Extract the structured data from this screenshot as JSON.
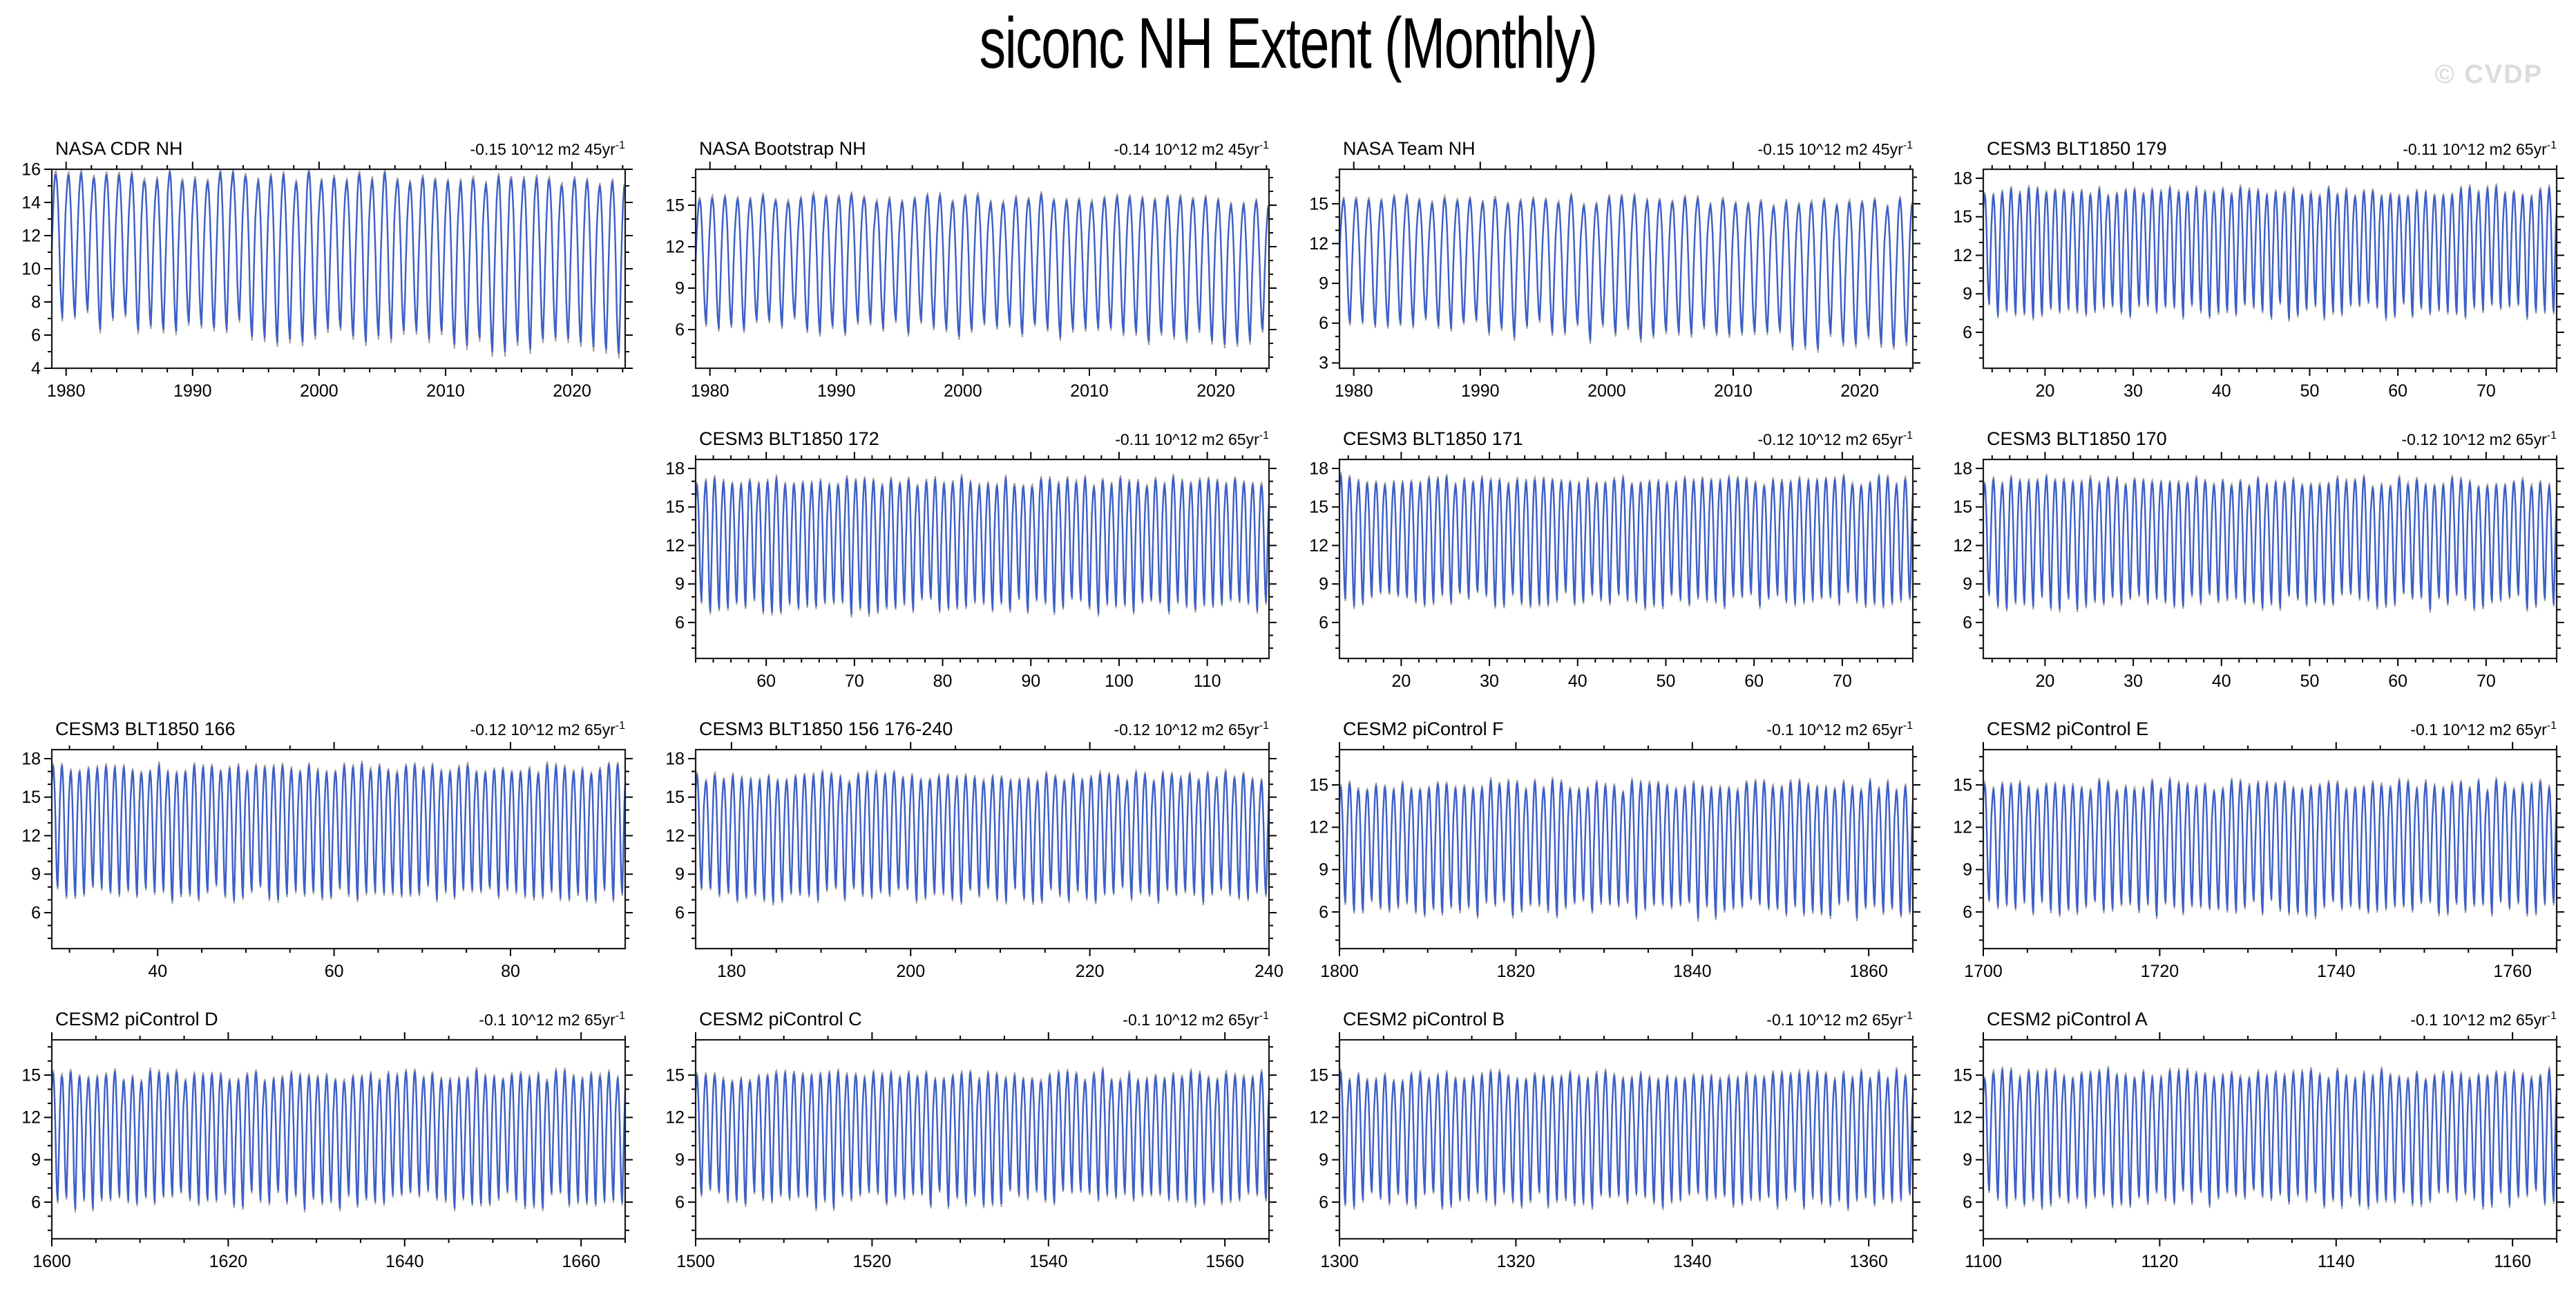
{
  "page": {
    "title": "siconc NH Extent (Monthly)",
    "watermark": "© CVDP"
  },
  "style": {
    "line_color": "#3d5fc9",
    "shadow_color": "#9e9e9e",
    "axis_color": "#000000",
    "box_color": "#1a1a1a",
    "watermark_color": "#dcdcdc",
    "background": "#ffffff"
  },
  "chart_data": [
    {
      "type": "line",
      "title": "NASA CDR NH",
      "trend": "-0.15 10^12 m2 45yr",
      "trend_sup": "-1",
      "row": 1,
      "col": 1,
      "x_start": 1978.87,
      "x_end": 2024.2,
      "x_major_ticks": [
        1980,
        1990,
        2000,
        2010,
        2020
      ],
      "x_minor_step": 2,
      "y_range": [
        4,
        16
      ],
      "y_major_ticks": [
        4,
        6,
        8,
        10,
        12,
        14,
        16
      ],
      "y_minor_step": 1,
      "seasonal_max": 15.75,
      "seasonal_min": 7.0,
      "max_drift": -0.55,
      "min_drift": -1.9,
      "seed": 101
    },
    {
      "type": "line",
      "title": "NASA Bootstrap NH",
      "trend": "-0.14 10^12 m2 45yr",
      "trend_sup": "-1",
      "row": 1,
      "col": 2,
      "x_start": 1978.87,
      "x_end": 2024.2,
      "x_major_ticks": [
        1980,
        1990,
        2000,
        2010,
        2020
      ],
      "x_minor_step": 2,
      "y_range": [
        3.2,
        17.6
      ],
      "y_major_ticks": [
        6,
        9,
        12,
        15
      ],
      "y_minor_step": 1,
      "seasonal_max": 15.6,
      "seasonal_min": 6.5,
      "max_drift": -0.4,
      "min_drift": -1.2,
      "seed": 202
    },
    {
      "type": "line",
      "title": "NASA Team NH",
      "trend": "-0.15 10^12 m2 45yr",
      "trend_sup": "-1",
      "row": 1,
      "col": 3,
      "x_start": 1978.87,
      "x_end": 2024.2,
      "x_major_ticks": [
        1980,
        1990,
        2000,
        2010,
        2020
      ],
      "x_minor_step": 2,
      "y_range": [
        2.6,
        17.6
      ],
      "y_major_ticks": [
        3,
        6,
        9,
        12,
        15
      ],
      "y_minor_step": 1,
      "seasonal_max": 15.4,
      "seasonal_min": 6.1,
      "max_drift": -0.5,
      "min_drift": -1.7,
      "seed": 303
    },
    {
      "type": "line",
      "title": "CESM3 BLT1850 179",
      "trend": "-0.11 10^12 m2 65yr",
      "trend_sup": "-1",
      "row": 1,
      "col": 4,
      "x_start": 13,
      "x_end": 78,
      "x_major_ticks": [
        20,
        30,
        40,
        50,
        60,
        70
      ],
      "x_minor_step": 2,
      "y_range": [
        3.2,
        18.7
      ],
      "y_major_ticks": [
        6,
        9,
        12,
        15,
        18
      ],
      "y_minor_step": 1,
      "seasonal_max": 16.9,
      "seasonal_min": 7.7,
      "max_drift": 0,
      "min_drift": 0,
      "seed": 404
    },
    {
      "type": "line",
      "title": "CESM3 BLT1850 172",
      "trend": "-0.11 10^12 m2 65yr",
      "trend_sup": "-1",
      "row": 2,
      "col": 2,
      "x_start": 52,
      "x_end": 117,
      "x_major_ticks": [
        60,
        70,
        80,
        90,
        100,
        110
      ],
      "x_minor_step": 2,
      "y_range": [
        3.2,
        18.7
      ],
      "y_major_ticks": [
        6,
        9,
        12,
        15,
        18
      ],
      "y_minor_step": 1,
      "seasonal_max": 16.9,
      "seasonal_min": 7.3,
      "max_drift": 0,
      "min_drift": 0,
      "seed": 505
    },
    {
      "type": "line",
      "title": "CESM3 BLT1850 171",
      "trend": "-0.12 10^12 m2 65yr",
      "trend_sup": "-1",
      "row": 2,
      "col": 3,
      "x_start": 13,
      "x_end": 78,
      "x_major_ticks": [
        20,
        30,
        40,
        50,
        60,
        70
      ],
      "x_minor_step": 2,
      "y_range": [
        3.2,
        18.7
      ],
      "y_major_ticks": [
        6,
        9,
        12,
        15,
        18
      ],
      "y_minor_step": 1,
      "seasonal_max": 17.0,
      "seasonal_min": 7.8,
      "max_drift": 0,
      "min_drift": 0,
      "seed": 606
    },
    {
      "type": "line",
      "title": "CESM3 BLT1850 170",
      "trend": "-0.12 10^12 m2 65yr",
      "trend_sup": "-1",
      "row": 2,
      "col": 4,
      "x_start": 13,
      "x_end": 78,
      "x_major_ticks": [
        20,
        30,
        40,
        50,
        60,
        70
      ],
      "x_minor_step": 2,
      "y_range": [
        3.2,
        18.7
      ],
      "y_major_ticks": [
        6,
        9,
        12,
        15,
        18
      ],
      "y_minor_step": 1,
      "seasonal_max": 16.9,
      "seasonal_min": 7.7,
      "max_drift": 0,
      "min_drift": 0,
      "seed": 707
    },
    {
      "type": "line",
      "title": "CESM3 BLT1850 166",
      "trend": "-0.12 10^12 m2 65yr",
      "trend_sup": "-1",
      "row": 3,
      "col": 1,
      "x_start": 28,
      "x_end": 93,
      "x_major_ticks": [
        40,
        60,
        80
      ],
      "x_minor_step": 5,
      "y_range": [
        3.2,
        18.7
      ],
      "y_major_ticks": [
        6,
        9,
        12,
        15,
        18
      ],
      "y_minor_step": 1,
      "seasonal_max": 17.2,
      "seasonal_min": 7.6,
      "max_drift": 0,
      "min_drift": 0,
      "seed": 808
    },
    {
      "type": "line",
      "title": "CESM3 BLT1850 156 176-240",
      "trend": "-0.12 10^12 m2 65yr",
      "trend_sup": "-1",
      "row": 3,
      "col": 2,
      "x_start": 176,
      "x_end": 240,
      "x_major_ticks": [
        180,
        200,
        220,
        240
      ],
      "x_minor_step": 5,
      "y_range": [
        3.2,
        18.7
      ],
      "y_major_ticks": [
        6,
        9,
        12,
        15,
        18
      ],
      "y_minor_step": 1,
      "seasonal_max": 16.5,
      "seasonal_min": 7.4,
      "max_drift": 0,
      "min_drift": 0,
      "seed": 909
    },
    {
      "type": "line",
      "title": "CESM2 piControl F",
      "trend": "-0.1 10^12 m2 65yr",
      "trend_sup": "-1",
      "row": 3,
      "col": 3,
      "x_start": 1800,
      "x_end": 1865,
      "x_major_ticks": [
        1800,
        1820,
        1840,
        1860
      ],
      "x_minor_step": 5,
      "y_range": [
        3.4,
        17.5
      ],
      "y_major_ticks": [
        6,
        9,
        12,
        15
      ],
      "y_minor_step": 1,
      "seasonal_max": 14.9,
      "seasonal_min": 6.3,
      "max_drift": 0,
      "min_drift": 0,
      "seed": 1010
    },
    {
      "type": "line",
      "title": "CESM2 piControl E",
      "trend": "-0.1 10^12 m2 65yr",
      "trend_sup": "-1",
      "row": 3,
      "col": 4,
      "x_start": 1700,
      "x_end": 1765,
      "x_major_ticks": [
        1700,
        1720,
        1740,
        1760
      ],
      "x_minor_step": 5,
      "y_range": [
        3.4,
        17.5
      ],
      "y_major_ticks": [
        6,
        9,
        12,
        15
      ],
      "y_minor_step": 1,
      "seasonal_max": 14.9,
      "seasonal_min": 6.3,
      "max_drift": 0,
      "min_drift": 0,
      "seed": 1111
    },
    {
      "type": "line",
      "title": "CESM2 piControl D",
      "trend": "-0.1 10^12 m2 65yr",
      "trend_sup": "-1",
      "row": 4,
      "col": 1,
      "x_start": 1600,
      "x_end": 1665,
      "x_major_ticks": [
        1600,
        1620,
        1640,
        1660
      ],
      "x_minor_step": 5,
      "y_range": [
        3.4,
        17.5
      ],
      "y_major_ticks": [
        6,
        9,
        12,
        15
      ],
      "y_minor_step": 1,
      "seasonal_max": 14.9,
      "seasonal_min": 6.2,
      "max_drift": 0,
      "min_drift": 0,
      "seed": 1212
    },
    {
      "type": "line",
      "title": "CESM2 piControl C",
      "trend": "-0.1 10^12 m2 65yr",
      "trend_sup": "-1",
      "row": 4,
      "col": 2,
      "x_start": 1500,
      "x_end": 1565,
      "x_major_ticks": [
        1500,
        1520,
        1540,
        1560
      ],
      "x_minor_step": 5,
      "y_range": [
        3.4,
        17.5
      ],
      "y_major_ticks": [
        6,
        9,
        12,
        15
      ],
      "y_minor_step": 1,
      "seasonal_max": 14.9,
      "seasonal_min": 6.3,
      "max_drift": 0,
      "min_drift": 0,
      "seed": 1313
    },
    {
      "type": "line",
      "title": "CESM2 piControl B",
      "trend": "-0.1 10^12 m2 65yr",
      "trend_sup": "-1",
      "row": 4,
      "col": 3,
      "x_start": 1300,
      "x_end": 1365,
      "x_major_ticks": [
        1300,
        1320,
        1340,
        1360
      ],
      "x_minor_step": 5,
      "y_range": [
        3.4,
        17.5
      ],
      "y_major_ticks": [
        6,
        9,
        12,
        15
      ],
      "y_minor_step": 1,
      "seasonal_max": 14.9,
      "seasonal_min": 6.2,
      "max_drift": 0,
      "min_drift": 0,
      "seed": 1414
    },
    {
      "type": "line",
      "title": "CESM2 piControl A",
      "trend": "-0.1 10^12 m2 65yr",
      "trend_sup": "-1",
      "row": 4,
      "col": 4,
      "x_start": 1100,
      "x_end": 1165,
      "x_major_ticks": [
        1100,
        1120,
        1140,
        1160
      ],
      "x_minor_step": 5,
      "y_range": [
        3.4,
        17.5
      ],
      "y_major_ticks": [
        6,
        9,
        12,
        15
      ],
      "y_minor_step": 1,
      "seasonal_max": 15.0,
      "seasonal_min": 6.3,
      "max_drift": 0,
      "min_drift": 0,
      "seed": 1515
    }
  ]
}
